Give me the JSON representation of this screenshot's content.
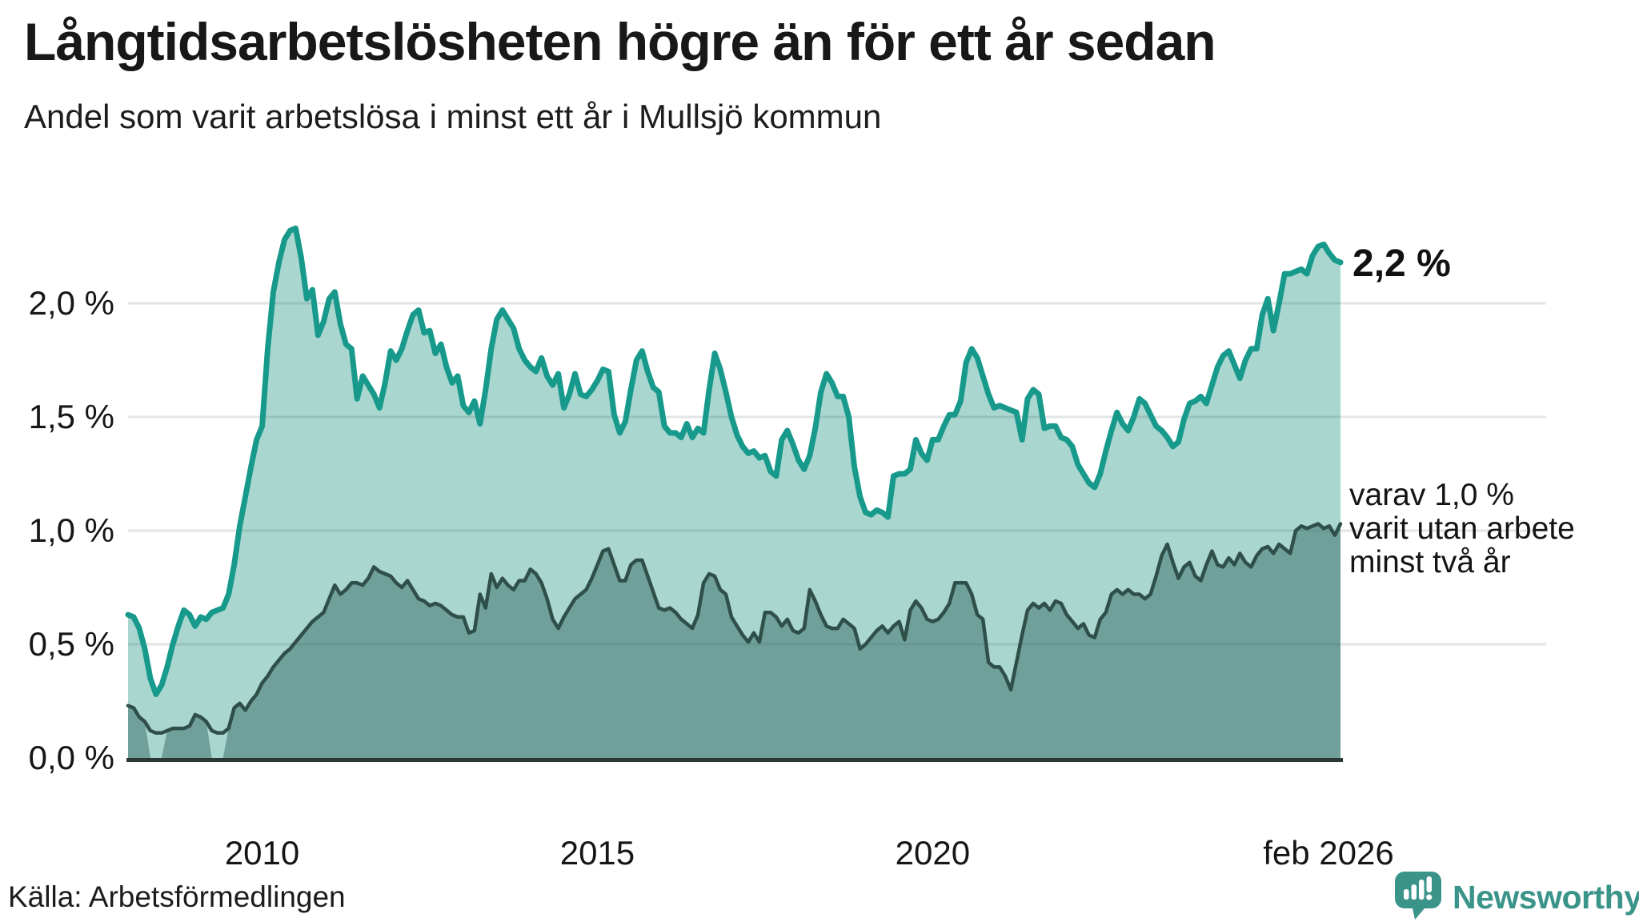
{
  "header": {
    "title": "Långtidsarbetslösheten högre än för ett år sedan",
    "subtitle": "Andel som varit arbetslösa i minst ett år i Mullsjö kommun"
  },
  "footer": {
    "source": "Källa: Arbetsförmedlingen",
    "logo_text": "Newsworthy",
    "logo_icon": "newsworthy-speech-bubble-bar-chart-icon"
  },
  "colors": {
    "light_line": "#17998b",
    "light_fill": "#a9d6cf",
    "dark_line": "#2f4f49",
    "dark_fill": "#6fa19a",
    "gridline": "rgba(70,100,100,0.16)",
    "baseline": "#2b3734",
    "logo_teal": "#3b948a",
    "text": "#161616"
  },
  "chart_data": {
    "type": "area",
    "title": "Långtidsarbetslösheten högre än för ett år sedan",
    "subtitle": "Andel som varit arbetslösa i minst ett år i Mullsjö kommun",
    "unit": "%",
    "frequency": "monthly",
    "x_start": "2008-01",
    "x_end": "2026-02",
    "ylim": [
      0,
      2.63
    ],
    "grid": true,
    "y_ticks": [
      {
        "value": 0.0,
        "label": "0,0 %"
      },
      {
        "value": 0.5,
        "label": "0,5 %"
      },
      {
        "value": 1.0,
        "label": "1,0 %"
      },
      {
        "value": 1.5,
        "label": "1,5 %"
      },
      {
        "value": 2.0,
        "label": "2,0 %"
      }
    ],
    "x_ticks": [
      {
        "month_index": 24,
        "label": "2010"
      },
      {
        "month_index": 84,
        "label": "2015"
      },
      {
        "month_index": 144,
        "label": "2020"
      },
      {
        "month_index": 217,
        "label": "feb 2026"
      }
    ],
    "end_labels": {
      "light": "2,2 %",
      "dark_lines": [
        "varav 1,0 %",
        "varit utan arbete",
        "minst två år"
      ]
    },
    "series": [
      {
        "name": "Andel som varit arbetslösa i minst ett år",
        "role": "light",
        "end_value": 2.2,
        "values": [
          0.63,
          0.62,
          0.57,
          0.48,
          0.35,
          0.28,
          0.32,
          0.4,
          0.5,
          0.58,
          0.65,
          0.63,
          0.58,
          0.62,
          0.61,
          0.64,
          0.65,
          0.66,
          0.72,
          0.85,
          1.02,
          1.15,
          1.28,
          1.4,
          1.46,
          1.8,
          2.05,
          2.18,
          2.28,
          2.32,
          2.33,
          2.2,
          2.02,
          2.06,
          1.86,
          1.92,
          2.02,
          2.05,
          1.91,
          1.82,
          1.8,
          1.58,
          1.68,
          1.64,
          1.6,
          1.54,
          1.65,
          1.79,
          1.75,
          1.8,
          1.88,
          1.95,
          1.97,
          1.87,
          1.88,
          1.78,
          1.82,
          1.72,
          1.65,
          1.68,
          1.55,
          1.52,
          1.57,
          1.47,
          1.62,
          1.8,
          1.93,
          1.97,
          1.93,
          1.89,
          1.8,
          1.75,
          1.72,
          1.7,
          1.76,
          1.68,
          1.64,
          1.69,
          1.54,
          1.6,
          1.69,
          1.6,
          1.59,
          1.62,
          1.66,
          1.71,
          1.7,
          1.51,
          1.43,
          1.48,
          1.62,
          1.75,
          1.79,
          1.7,
          1.63,
          1.61,
          1.46,
          1.43,
          1.43,
          1.41,
          1.47,
          1.41,
          1.45,
          1.43,
          1.62,
          1.78,
          1.71,
          1.61,
          1.5,
          1.42,
          1.37,
          1.34,
          1.35,
          1.32,
          1.33,
          1.26,
          1.24,
          1.4,
          1.44,
          1.38,
          1.31,
          1.27,
          1.33,
          1.45,
          1.61,
          1.69,
          1.65,
          1.59,
          1.59,
          1.5,
          1.28,
          1.15,
          1.08,
          1.07,
          1.09,
          1.08,
          1.06,
          1.24,
          1.25,
          1.25,
          1.27,
          1.4,
          1.34,
          1.31,
          1.4,
          1.4,
          1.46,
          1.51,
          1.51,
          1.57,
          1.74,
          1.8,
          1.76,
          1.68,
          1.6,
          1.54,
          1.55,
          1.54,
          1.53,
          1.52,
          1.4,
          1.58,
          1.62,
          1.6,
          1.45,
          1.46,
          1.46,
          1.41,
          1.4,
          1.37,
          1.29,
          1.25,
          1.21,
          1.19,
          1.25,
          1.35,
          1.44,
          1.52,
          1.47,
          1.44,
          1.5,
          1.58,
          1.56,
          1.51,
          1.46,
          1.44,
          1.41,
          1.37,
          1.39,
          1.49,
          1.56,
          1.57,
          1.59,
          1.56,
          1.64,
          1.72,
          1.77,
          1.79,
          1.73,
          1.67,
          1.75,
          1.8,
          1.8,
          1.95,
          2.02,
          1.88,
          2.0,
          2.13,
          2.13,
          2.14,
          2.15,
          2.13,
          2.21,
          2.25,
          2.26,
          2.22,
          2.19,
          2.18
        ]
      },
      {
        "name": "varav utan arbete minst två år",
        "role": "dark",
        "end_value": 1.0,
        "fill_gap_indices": [
          4,
          5,
          6,
          15,
          16,
          17
        ],
        "values": [
          0.23,
          0.22,
          0.18,
          0.16,
          0.12,
          0.11,
          0.11,
          0.12,
          0.13,
          0.13,
          0.13,
          0.14,
          0.19,
          0.18,
          0.16,
          0.12,
          0.11,
          0.11,
          0.13,
          0.22,
          0.24,
          0.21,
          0.25,
          0.28,
          0.33,
          0.36,
          0.4,
          0.43,
          0.46,
          0.48,
          0.51,
          0.54,
          0.57,
          0.6,
          0.62,
          0.64,
          0.7,
          0.76,
          0.72,
          0.74,
          0.77,
          0.77,
          0.76,
          0.79,
          0.84,
          0.82,
          0.81,
          0.8,
          0.77,
          0.75,
          0.78,
          0.74,
          0.7,
          0.69,
          0.67,
          0.68,
          0.67,
          0.65,
          0.63,
          0.62,
          0.62,
          0.55,
          0.56,
          0.72,
          0.66,
          0.81,
          0.75,
          0.79,
          0.76,
          0.74,
          0.78,
          0.78,
          0.83,
          0.81,
          0.77,
          0.7,
          0.61,
          0.57,
          0.62,
          0.66,
          0.7,
          0.72,
          0.74,
          0.79,
          0.85,
          0.91,
          0.92,
          0.85,
          0.78,
          0.78,
          0.85,
          0.87,
          0.87,
          0.8,
          0.73,
          0.66,
          0.65,
          0.66,
          0.64,
          0.61,
          0.59,
          0.57,
          0.63,
          0.77,
          0.81,
          0.8,
          0.74,
          0.72,
          0.62,
          0.58,
          0.54,
          0.51,
          0.55,
          0.51,
          0.64,
          0.64,
          0.62,
          0.58,
          0.61,
          0.56,
          0.55,
          0.57,
          0.74,
          0.69,
          0.63,
          0.58,
          0.57,
          0.57,
          0.61,
          0.59,
          0.57,
          0.48,
          0.5,
          0.53,
          0.56,
          0.58,
          0.55,
          0.58,
          0.6,
          0.52,
          0.65,
          0.69,
          0.66,
          0.61,
          0.6,
          0.61,
          0.64,
          0.68,
          0.77,
          0.77,
          0.77,
          0.72,
          0.63,
          0.61,
          0.42,
          0.4,
          0.4,
          0.36,
          0.3,
          0.42,
          0.54,
          0.65,
          0.68,
          0.66,
          0.68,
          0.65,
          0.69,
          0.68,
          0.63,
          0.6,
          0.57,
          0.59,
          0.54,
          0.53,
          0.61,
          0.64,
          0.72,
          0.74,
          0.72,
          0.74,
          0.72,
          0.72,
          0.7,
          0.72,
          0.8,
          0.89,
          0.94,
          0.86,
          0.79,
          0.84,
          0.86,
          0.8,
          0.78,
          0.85,
          0.91,
          0.85,
          0.84,
          0.88,
          0.85,
          0.9,
          0.86,
          0.84,
          0.89,
          0.92,
          0.93,
          0.9,
          0.94,
          0.92,
          0.9,
          1.0,
          1.02,
          1.01,
          1.02,
          1.03,
          1.01,
          1.02,
          0.98,
          1.03
        ]
      }
    ]
  }
}
